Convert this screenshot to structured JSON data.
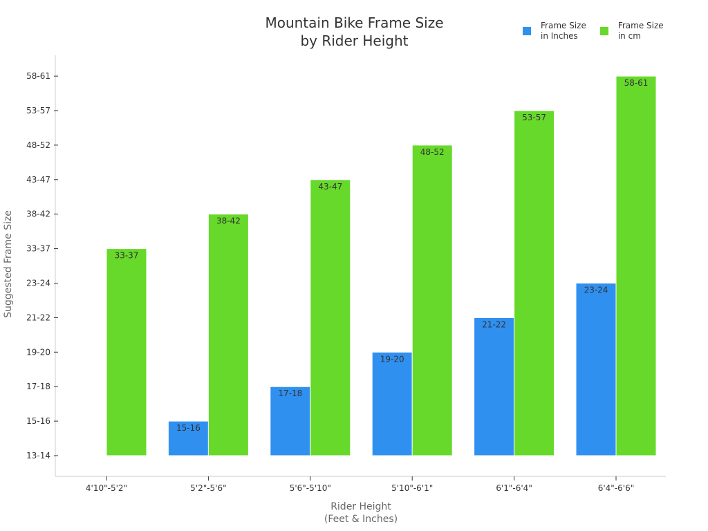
{
  "chart_data": {
    "type": "bar",
    "title": [
      "Mountain Bike Frame Size",
      "by Rider Height"
    ],
    "xlabel": [
      "Rider Height",
      "(Feet & Inches)"
    ],
    "ylabel": "Suggested Frame Size",
    "categories": [
      "4'10\"-5'2\"",
      "5'2\"-5'6\"",
      "5'6\"-5'10\"",
      "5'10\"-6'1\"",
      "6'1\"-6'4\"",
      "6'4\"-6'6\""
    ],
    "y_ticks": [
      "13-14",
      "15-16",
      "17-18",
      "19-20",
      "21-22",
      "23-24",
      "33-37",
      "38-42",
      "43-47",
      "48-52",
      "53-57",
      "58-61"
    ],
    "series": [
      {
        "name": [
          "Frame Size",
          "in Inches"
        ],
        "color": "#3090f0",
        "values": [
          null,
          "15-16",
          "17-18",
          "19-20",
          "21-22",
          "23-24"
        ]
      },
      {
        "name": [
          "Frame Size",
          "in cm"
        ],
        "color": "#66d92a",
        "values": [
          "33-37",
          "38-42",
          "43-47",
          "48-52",
          "53-57",
          "58-61"
        ]
      }
    ],
    "legend_position": "top-right",
    "grid": false
  }
}
